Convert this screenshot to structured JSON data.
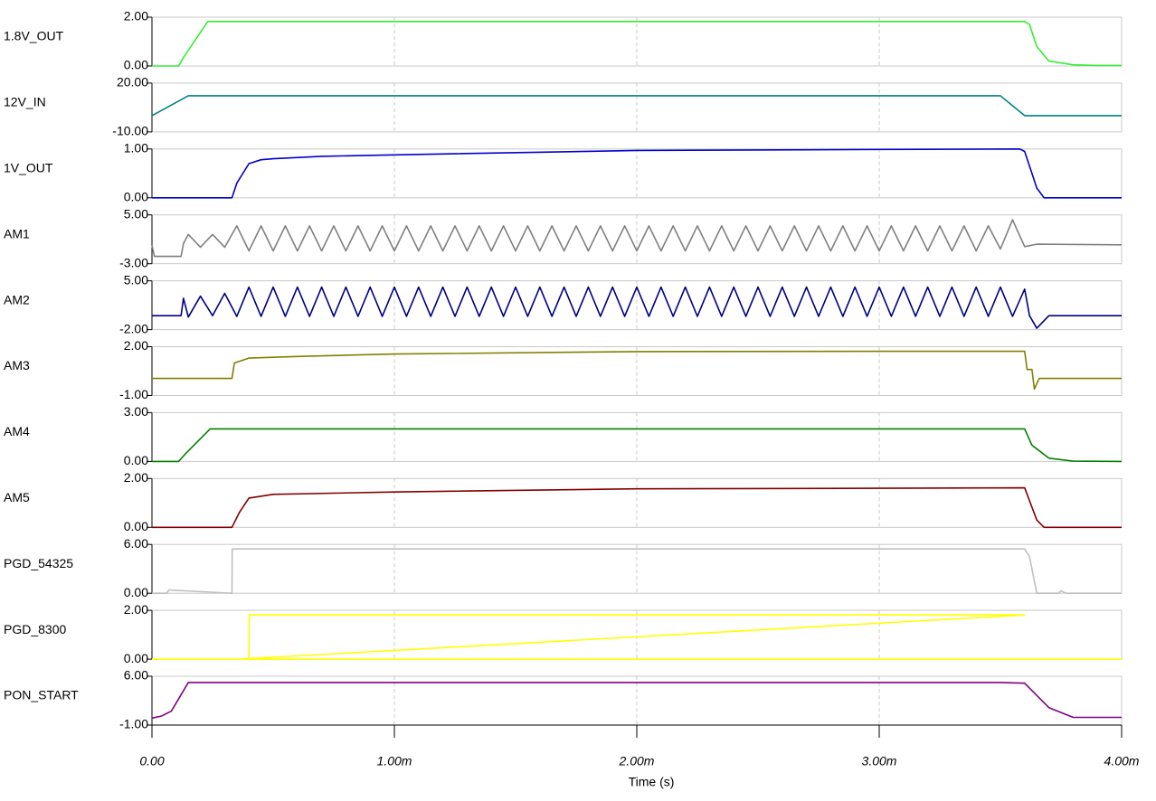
{
  "chart_data": {
    "type": "line",
    "xlabel": "Time (s)",
    "grid": true,
    "xlim": [
      0,
      0.004
    ],
    "xticks": [
      {
        "value": 0,
        "label": "0.00"
      },
      {
        "value": 0.001,
        "label": "1.00m"
      },
      {
        "value": 0.002,
        "label": "2.00m"
      },
      {
        "value": 0.003,
        "label": "3.00m"
      },
      {
        "value": 0.004,
        "label": "4.00m"
      }
    ],
    "series": [
      {
        "name": "1.8V_OUT",
        "color": "#33ee33",
        "ylim": [
          0,
          2
        ],
        "yticks": [
          {
            "value": 2,
            "label": "2.00"
          },
          {
            "value": 0,
            "label": "0.00"
          }
        ],
        "x": [
          0,
          0.00011,
          0.00013,
          0.00023,
          0.0036,
          0.00362,
          0.00365,
          0.0037,
          0.0038,
          0.0039,
          0.004
        ],
        "values": [
          0,
          0,
          0.35,
          1.82,
          1.82,
          1.7,
          0.8,
          0.2,
          0.05,
          0.02,
          0.02
        ]
      },
      {
        "name": "12V_IN",
        "color": "#008080",
        "ylim": [
          -10,
          20
        ],
        "yticks": [
          {
            "value": 20,
            "label": "20.00"
          },
          {
            "value": -10,
            "label": "-10.00"
          }
        ],
        "x": [
          0,
          0.00015,
          0.0035,
          0.0036,
          0.004
        ],
        "values": [
          0,
          12.2,
          12.2,
          0,
          0
        ]
      },
      {
        "name": "1V_OUT",
        "color": "#0000cc",
        "ylim": [
          0,
          1
        ],
        "yticks": [
          {
            "value": 1,
            "label": "1.00"
          },
          {
            "value": 0,
            "label": "0.00"
          }
        ],
        "x": [
          0,
          0.00033,
          0.00035,
          0.0004,
          0.00045,
          0.0005,
          0.0007,
          0.001,
          0.002,
          0.003,
          0.00358,
          0.0036,
          0.00365,
          0.00368,
          0.004
        ],
        "values": [
          0,
          0,
          0.3,
          0.7,
          0.78,
          0.8,
          0.85,
          0.88,
          0.97,
          0.99,
          1.0,
          0.95,
          0.2,
          0,
          0
        ]
      },
      {
        "name": "AM1",
        "color": "#808080",
        "ylim": [
          -3,
          5
        ],
        "yticks": [
          {
            "value": 5,
            "label": "5.00"
          },
          {
            "value": -3,
            "label": "-3.00"
          }
        ],
        "x": [
          0,
          1e-05,
          0.00012,
          0.00013,
          0.00015,
          0.0002,
          0.00025,
          0.0003,
          0.00035,
          0.0004,
          0.00045,
          0.0005,
          0.00055,
          0.0006,
          0.00065,
          0.0007,
          0.00075,
          0.0008,
          0.00085,
          0.0009,
          0.00095,
          0.001,
          0.00105,
          0.0011,
          0.00115,
          0.0012,
          0.00125,
          0.0013,
          0.00135,
          0.0014,
          0.00145,
          0.0015,
          0.00155,
          0.0016,
          0.00165,
          0.0017,
          0.00175,
          0.0018,
          0.00185,
          0.0019,
          0.00195,
          0.002,
          0.00205,
          0.0021,
          0.00215,
          0.0022,
          0.00225,
          0.0023,
          0.00235,
          0.0024,
          0.00245,
          0.0025,
          0.00255,
          0.0026,
          0.00265,
          0.0027,
          0.00275,
          0.0028,
          0.00285,
          0.0029,
          0.00295,
          0.003,
          0.00305,
          0.0031,
          0.00315,
          0.0032,
          0.00325,
          0.0033,
          0.00335,
          0.0034,
          0.00345,
          0.0035,
          0.00355,
          0.0036,
          0.00365,
          0.004
        ],
        "values": [
          0,
          -1.8,
          -1.8,
          0.3,
          1.8,
          -0.3,
          1.8,
          -0.3,
          3.2,
          -0.9,
          3.2,
          -0.9,
          3.2,
          -0.9,
          3.2,
          -0.9,
          3.2,
          -0.9,
          3.2,
          -0.9,
          3.2,
          -0.9,
          3.2,
          -0.9,
          3.2,
          -0.9,
          3.2,
          -0.9,
          3.2,
          -0.9,
          3.2,
          -0.9,
          3.2,
          -0.9,
          3.2,
          -0.9,
          3.2,
          -0.9,
          3.2,
          -0.9,
          3.2,
          -0.9,
          3.2,
          -0.9,
          3.2,
          -0.9,
          3.2,
          -0.9,
          3.2,
          -0.9,
          3.2,
          -0.9,
          3.2,
          -0.9,
          3.2,
          -0.9,
          3.2,
          -0.9,
          3.2,
          -0.9,
          3.2,
          -0.9,
          3.2,
          -0.9,
          3.2,
          -0.9,
          3.2,
          -0.9,
          3.2,
          -0.9,
          3.2,
          -0.6,
          4.2,
          -0.2,
          0.2,
          0.1
        ]
      },
      {
        "name": "AM2",
        "color": "#000080",
        "ylim": [
          -2,
          5
        ],
        "yticks": [
          {
            "value": 5,
            "label": "5.00"
          },
          {
            "value": -2,
            "label": "-2.00"
          }
        ],
        "x": [
          0,
          0.00012,
          0.00013,
          0.00015,
          0.0002,
          0.00025,
          0.0003,
          0.00035,
          0.0004,
          0.00045,
          0.0005,
          0.00055,
          0.0006,
          0.00065,
          0.0007,
          0.00075,
          0.0008,
          0.00085,
          0.0009,
          0.00095,
          0.001,
          0.00105,
          0.0011,
          0.00115,
          0.0012,
          0.00125,
          0.0013,
          0.00135,
          0.0014,
          0.00145,
          0.0015,
          0.00155,
          0.0016,
          0.00165,
          0.0017,
          0.00175,
          0.0018,
          0.00185,
          0.0019,
          0.00195,
          0.002,
          0.00205,
          0.0021,
          0.00215,
          0.0022,
          0.00225,
          0.0023,
          0.00235,
          0.0024,
          0.00245,
          0.0025,
          0.00255,
          0.0026,
          0.00265,
          0.0027,
          0.00275,
          0.0028,
          0.00285,
          0.0029,
          0.00295,
          0.003,
          0.00305,
          0.0031,
          0.00315,
          0.0032,
          0.00325,
          0.0033,
          0.00335,
          0.0034,
          0.00345,
          0.0035,
          0.00355,
          0.0036,
          0.00362,
          0.00365,
          0.0037,
          0.004
        ],
        "values": [
          0,
          0,
          2.5,
          -0.2,
          2.8,
          0,
          3.2,
          -0.1,
          4.1,
          -0.1,
          4.1,
          -0.1,
          4.1,
          -0.1,
          4.1,
          -0.1,
          4.1,
          -0.1,
          4.1,
          -0.1,
          4.1,
          -0.1,
          4.1,
          -0.1,
          4.1,
          -0.1,
          4.1,
          -0.1,
          4.1,
          -0.1,
          4.1,
          -0.1,
          4.1,
          -0.1,
          4.1,
          -0.1,
          4.1,
          -0.1,
          4.1,
          -0.1,
          4.1,
          -0.1,
          4.1,
          -0.1,
          4.1,
          -0.1,
          4.1,
          -0.1,
          4.1,
          -0.1,
          4.1,
          -0.1,
          4.1,
          -0.1,
          4.1,
          -0.1,
          4.1,
          -0.1,
          4.1,
          -0.1,
          4.1,
          -0.1,
          4.1,
          -0.1,
          4.1,
          -0.1,
          4.1,
          -0.1,
          4.1,
          -0.1,
          4.1,
          -0.1,
          3.8,
          0,
          -1.8,
          0,
          0
        ]
      },
      {
        "name": "AM3",
        "color": "#808000",
        "ylim": [
          -1,
          2
        ],
        "yticks": [
          {
            "value": 2,
            "label": "2.00"
          },
          {
            "value": -1,
            "label": "-1.00"
          }
        ],
        "x": [
          0,
          0.00033,
          0.00034,
          0.0004,
          0.0006,
          0.001,
          0.002,
          0.003,
          0.0036,
          0.00361,
          0.00363,
          0.00364,
          0.00366,
          0.004
        ],
        "values": [
          0.05,
          0.05,
          1.0,
          1.3,
          1.4,
          1.55,
          1.7,
          1.72,
          1.72,
          0.6,
          0.6,
          -0.6,
          0.05,
          0.05
        ]
      },
      {
        "name": "AM4",
        "color": "#008000",
        "ylim": [
          0,
          3
        ],
        "yticks": [
          {
            "value": 3,
            "label": "3.00"
          },
          {
            "value": 0,
            "label": "0.00"
          }
        ],
        "x": [
          0,
          0.00011,
          0.00014,
          0.00024,
          0.0036,
          0.00363,
          0.0037,
          0.0038,
          0.004
        ],
        "values": [
          0,
          0,
          0.5,
          2.0,
          2.0,
          1.0,
          0.2,
          0.02,
          0
        ]
      },
      {
        "name": "AM5",
        "color": "#800000",
        "ylim": [
          0,
          2
        ],
        "yticks": [
          {
            "value": 2,
            "label": "2.00"
          },
          {
            "value": 0,
            "label": "0.00"
          }
        ],
        "x": [
          0,
          0.00033,
          0.00036,
          0.0004,
          0.0005,
          0.001,
          0.002,
          0.003,
          0.0036,
          0.00365,
          0.00368,
          0.004
        ],
        "values": [
          0,
          0,
          0.6,
          1.2,
          1.35,
          1.45,
          1.58,
          1.6,
          1.62,
          0.3,
          0,
          0
        ]
      },
      {
        "name": "PGD_54325",
        "color": "#c0c0c0",
        "ylim": [
          0,
          6
        ],
        "yticks": [
          {
            "value": 6,
            "label": "6.00"
          },
          {
            "value": 0,
            "label": "0.00"
          }
        ],
        "x": [
          0,
          6e-05,
          7e-05,
          0.00033,
          0.000331,
          0.0036,
          0.00362,
          0.00365,
          0.00374,
          0.00375,
          0.00377,
          0.004
        ],
        "values": [
          0,
          0,
          0.4,
          0,
          5.45,
          5.45,
          4.5,
          0,
          0,
          0.3,
          0,
          0
        ]
      },
      {
        "name": "PGD_8300",
        "color": "#ffff00",
        "ylim": [
          0,
          2
        ],
        "yticks": [
          {
            "value": 2,
            "label": "2.00"
          },
          {
            "value": 0,
            "label": "0.00"
          }
        ],
        "x": [
          0,
          0.0004,
          0.000401,
          0.0036,
          0.000361,
          0.004
        ],
        "values": [
          0,
          0,
          1.81,
          1.81,
          0,
          0
        ]
      },
      {
        "name": "PON_START",
        "color": "#800080",
        "ylim": [
          -1,
          6
        ],
        "yticks": [
          {
            "value": 6,
            "label": "6.00"
          },
          {
            "value": -1,
            "label": "-1.00"
          }
        ],
        "x": [
          0,
          4e-05,
          8e-05,
          0.00015,
          0.0035,
          0.0036,
          0.0037,
          0.0038,
          0.004
        ],
        "values": [
          0,
          0.3,
          1.0,
          5.1,
          5.1,
          5.0,
          1.5,
          0.1,
          0.1
        ]
      }
    ]
  }
}
